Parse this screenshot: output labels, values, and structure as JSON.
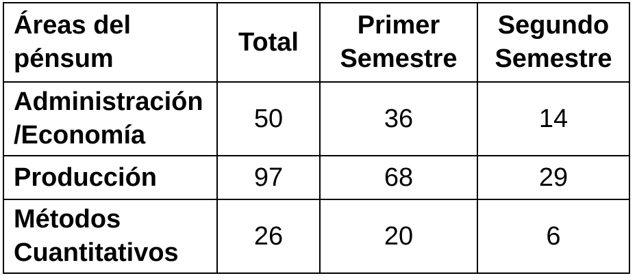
{
  "table": {
    "headers": {
      "area": "Áreas del pénsum",
      "total": "Total",
      "first": "Primer Semestre",
      "second": "Segundo Semestre"
    },
    "rows": [
      {
        "area": "Administración /Economía",
        "total": "50",
        "first": "36",
        "second": "14"
      },
      {
        "area": "Producción",
        "total": "97",
        "first": "68",
        "second": "29"
      },
      {
        "area": "Métodos Cuantitativos",
        "total": "26",
        "first": "20",
        "second": "6"
      }
    ]
  }
}
